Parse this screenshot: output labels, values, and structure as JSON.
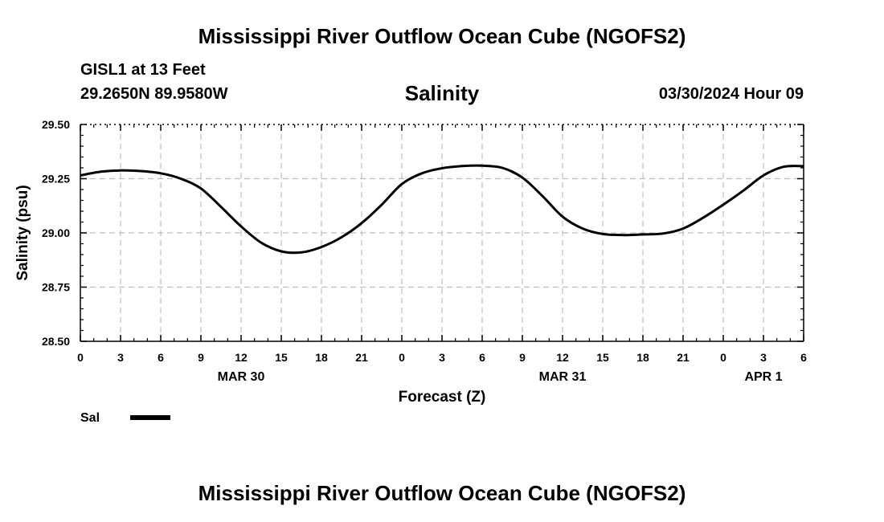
{
  "header": {
    "title": "Mississippi River Outflow Ocean Cube (NGOFS2)",
    "station": "GISL1 at 13 Feet",
    "coords": "29.2650N  89.9580W",
    "parameter": "Salinity",
    "datetime": "03/30/2024 Hour 09"
  },
  "footer": {
    "title": "Mississippi River Outflow Ocean Cube (NGOFS2)"
  },
  "chart_data": {
    "type": "line",
    "xlabel": "Forecast (Z)",
    "ylabel": "Salinity (psu)",
    "xlim": [
      0,
      54
    ],
    "ylim": [
      28.5,
      29.5
    ],
    "x_ticks": [
      0,
      3,
      6,
      9,
      12,
      15,
      18,
      21,
      24,
      27,
      30,
      33,
      36,
      39,
      42,
      45,
      48,
      51,
      54
    ],
    "x_tick_labels": [
      "0",
      "3",
      "6",
      "9",
      "12",
      "15",
      "18",
      "21",
      "0",
      "3",
      "6",
      "9",
      "12",
      "15",
      "18",
      "21",
      "0",
      "3",
      "6"
    ],
    "y_ticks": [
      28.5,
      28.75,
      29.0,
      29.25,
      29.5
    ],
    "y_tick_labels": [
      "28.50",
      "28.75",
      "29.00",
      "29.25",
      "29.50"
    ],
    "date_labels": [
      {
        "label": "MAR 30",
        "x": 12
      },
      {
        "label": "MAR 31",
        "x": 36
      },
      {
        "label": "APR 1",
        "x": 51
      }
    ],
    "grid": true,
    "legend_position": "bottom-left",
    "series": [
      {
        "name": "Sal",
        "color": "#000000",
        "x": [
          0,
          1.5,
          3,
          4.5,
          6,
          7.5,
          9,
          10.5,
          12,
          13.5,
          15,
          16.5,
          18,
          19.5,
          21,
          22.5,
          24,
          25.5,
          27,
          28.5,
          30,
          31.5,
          33,
          34.5,
          36,
          37.5,
          39,
          40.5,
          42,
          43.5,
          45,
          46.5,
          48,
          49.5,
          51,
          52.5,
          54
        ],
        "y": [
          29.265,
          29.282,
          29.288,
          29.285,
          29.275,
          29.25,
          29.205,
          29.12,
          29.03,
          28.955,
          28.915,
          28.91,
          28.935,
          28.98,
          29.045,
          29.13,
          29.225,
          29.275,
          29.298,
          29.308,
          29.31,
          29.3,
          29.255,
          29.17,
          29.075,
          29.02,
          28.995,
          28.99,
          28.993,
          28.997,
          29.02,
          29.07,
          29.13,
          29.195,
          29.265,
          29.305,
          29.308
        ]
      }
    ]
  }
}
